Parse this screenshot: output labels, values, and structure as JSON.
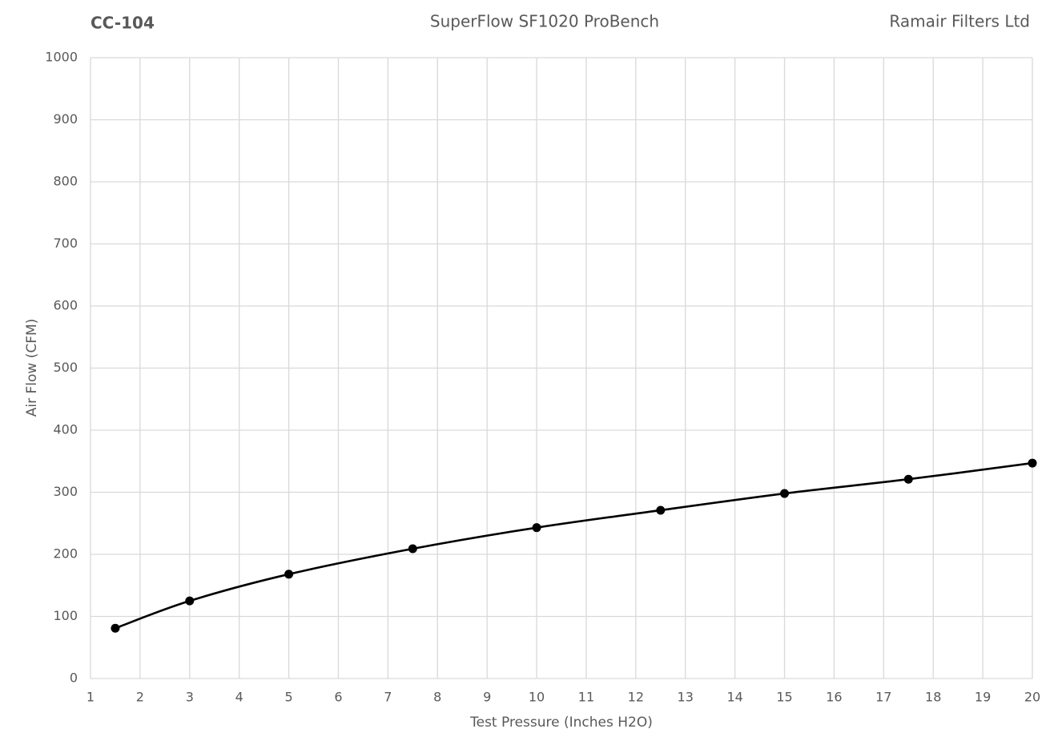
{
  "chart_data": {
    "type": "line",
    "title": "SuperFlow SF1020 ProBench",
    "left_title": "CC-104",
    "right_title": "Ramair Filters Ltd",
    "x_label": "Test Pressure (Inches H2O)",
    "y_label": "Air Flow (CFM)",
    "x": [
      1.5,
      3,
      5,
      7.5,
      10,
      12.5,
      15,
      17.5,
      20
    ],
    "values": [
      81,
      125,
      168,
      209,
      243,
      271,
      298,
      321,
      347
    ],
    "color": "#000000",
    "smooth": true,
    "markers": true,
    "grid": true,
    "xlim": [
      1,
      20
    ],
    "xticks": [
      1,
      2,
      3,
      4,
      5,
      6,
      7,
      8,
      9,
      10,
      11,
      12,
      13,
      14,
      15,
      16,
      17,
      18,
      19,
      20
    ],
    "ylim": [
      0,
      1000
    ],
    "yticks": [
      0,
      100,
      200,
      300,
      400,
      500,
      600,
      700,
      800,
      900,
      1000
    ]
  }
}
